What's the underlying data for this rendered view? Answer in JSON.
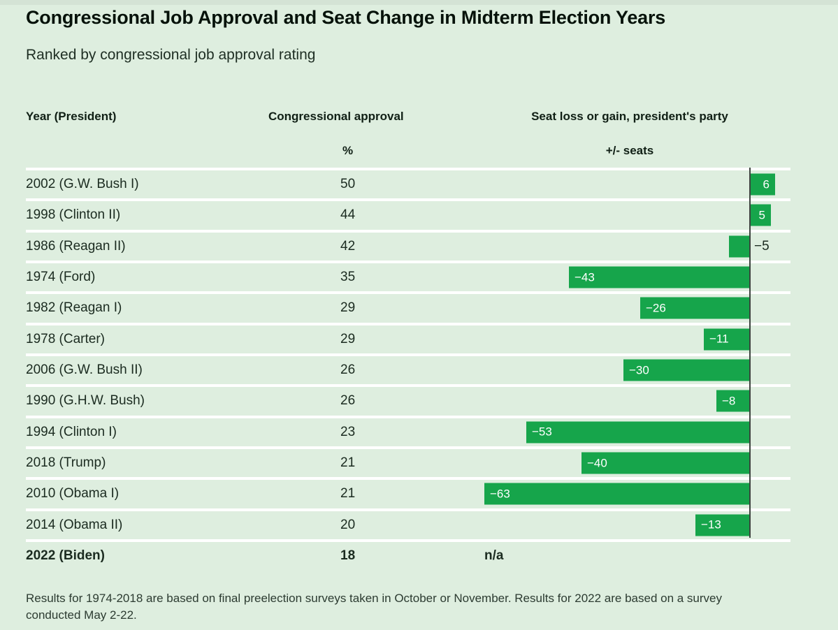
{
  "page": {
    "title": "Congressional Job Approval and Seat Change in Midterm Election Years",
    "subtitle": "Ranked by congressional job approval rating",
    "footnote": "Results for 1974-2018 are based on final preelection surveys taken in October or November. Results for 2022 are based on a survey conducted May 2-22."
  },
  "table": {
    "headers": {
      "year": "Year (President)",
      "approval": "Congressional approval",
      "seats": "Seat loss or gain, president's party"
    },
    "units": {
      "approval": "%",
      "seats": "+/- seats"
    },
    "rows": [
      {
        "year": "2002 (G.W. Bush I)",
        "approval": "50",
        "seats": 6,
        "seats_label": "6",
        "bold": false
      },
      {
        "year": "1998 (Clinton II)",
        "approval": "44",
        "seats": 5,
        "seats_label": "5",
        "bold": false
      },
      {
        "year": "1986 (Reagan II)",
        "approval": "42",
        "seats": -5,
        "seats_label": "−5",
        "bold": false
      },
      {
        "year": "1974 (Ford)",
        "approval": "35",
        "seats": -43,
        "seats_label": "−43",
        "bold": false
      },
      {
        "year": "1982 (Reagan I)",
        "approval": "29",
        "seats": -26,
        "seats_label": "−26",
        "bold": false
      },
      {
        "year": "1978 (Carter)",
        "approval": "29",
        "seats": -11,
        "seats_label": "−11",
        "bold": false
      },
      {
        "year": "2006 (G.W. Bush II)",
        "approval": "26",
        "seats": -30,
        "seats_label": "−30",
        "bold": false
      },
      {
        "year": "1990 (G.H.W. Bush)",
        "approval": "26",
        "seats": -8,
        "seats_label": "−8",
        "bold": false
      },
      {
        "year": "1994 (Clinton I)",
        "approval": "23",
        "seats": -53,
        "seats_label": "−53",
        "bold": false
      },
      {
        "year": "2018 (Trump)",
        "approval": "21",
        "seats": -40,
        "seats_label": "−40",
        "bold": false
      },
      {
        "year": "2010 (Obama I)",
        "approval": "21",
        "seats": -63,
        "seats_label": "−63",
        "bold": false
      },
      {
        "year": "2014 (Obama II)",
        "approval": "20",
        "seats": -13,
        "seats_label": "−13",
        "bold": false
      },
      {
        "year": "2022 (Biden)",
        "approval": "18",
        "seats": null,
        "seats_label": "n/a",
        "bold": true
      }
    ]
  },
  "colors": {
    "background": "#deeedf",
    "bar_green": "#16a54b",
    "separator": "#ffffff",
    "axis_line": "#3d443f",
    "bar_label_text": "#ffffff",
    "text_dark": "#1b2b20"
  },
  "chart_data": {
    "type": "bar",
    "orientation": "horizontal",
    "title": "Congressional Job Approval and Seat Change in Midterm Election Years",
    "subtitle": "Ranked by congressional job approval rating",
    "categories": [
      "2002 (G.W. Bush I)",
      "1998 (Clinton II)",
      "1986 (Reagan II)",
      "1974 (Ford)",
      "1982 (Reagan I)",
      "1978 (Carter)",
      "2006 (G.W. Bush II)",
      "1990 (G.H.W. Bush)",
      "1994 (Clinton I)",
      "2018 (Trump)",
      "2010 (Obama I)",
      "2014 (Obama II)",
      "2022 (Biden)"
    ],
    "series": [
      {
        "name": "Congressional approval (%)",
        "values": [
          50,
          44,
          42,
          35,
          29,
          29,
          26,
          26,
          23,
          21,
          21,
          20,
          18
        ]
      },
      {
        "name": "Seat loss or gain, president's party (+/- seats)",
        "values": [
          6,
          5,
          -5,
          -43,
          -26,
          -11,
          -30,
          -8,
          -53,
          -40,
          -63,
          -13,
          null
        ]
      }
    ],
    "sorted_by": "Congressional approval descending",
    "bar_color": "#16a54b",
    "zero_baseline": true,
    "grid": false,
    "legend": "none",
    "footnote": "Results for 1974-2018 are based on final preelection surveys taken in October or November. Results for 2022 are based on a survey conducted May 2-22."
  }
}
